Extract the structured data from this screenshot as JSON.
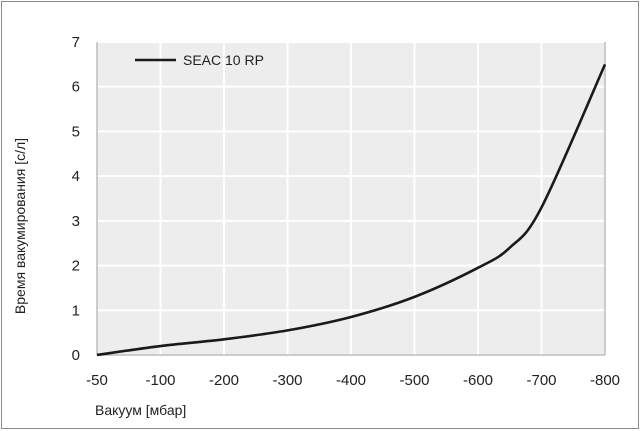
{
  "chart_data": {
    "type": "line",
    "title": "",
    "xlabel": "Вакуум [мбар]",
    "ylabel": "Время вакумирования [с/л]",
    "x_categories": [
      "-50",
      "-100",
      "-200",
      "-300",
      "-400",
      "-500",
      "-600",
      "-700",
      "-800"
    ],
    "y_ticks": [
      "0",
      "1",
      "2",
      "3",
      "4",
      "5",
      "6",
      "7"
    ],
    "ylim": [
      0,
      7
    ],
    "grid": true,
    "legend_position": "top-left",
    "series": [
      {
        "name": "SEAC 10 RP",
        "color": "#1a1a1a",
        "points": [
          {
            "x": "-50",
            "y": 0.0
          },
          {
            "x": "-100",
            "y": 0.2
          },
          {
            "x": "-200",
            "y": 0.35
          },
          {
            "x": "-300",
            "y": 0.55
          },
          {
            "x": "-400",
            "y": 0.85
          },
          {
            "x": "-500",
            "y": 1.3
          },
          {
            "x": "-600",
            "y": 1.95
          },
          {
            "x": "-650",
            "y": 2.4
          },
          {
            "x": "-700",
            "y": 3.3
          },
          {
            "x": "-800",
            "y": 6.5
          }
        ]
      }
    ]
  },
  "colors": {
    "plot_background": "#ededed",
    "grid": "#ffffff",
    "axis": "#bdbdbd",
    "line": "#1a1a1a"
  }
}
